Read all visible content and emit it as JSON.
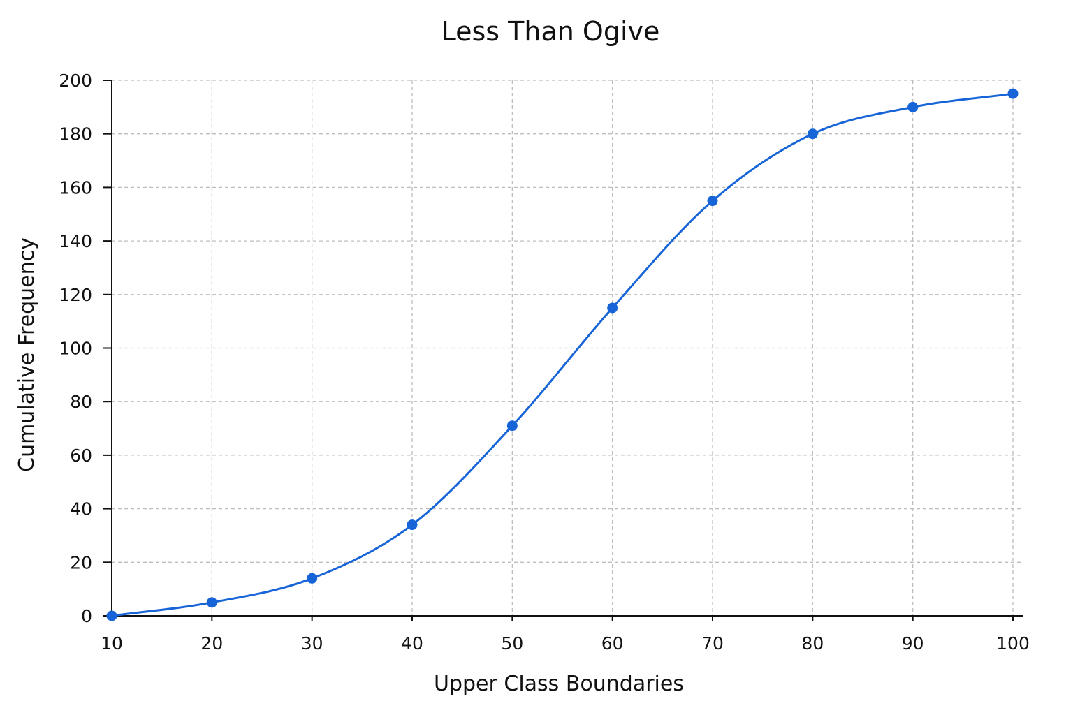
{
  "chart_data": {
    "type": "line",
    "title": "Less Than Ogive",
    "xlabel": "Upper Class Boundaries",
    "ylabel": "Cumulative Frequency",
    "x": [
      10,
      20,
      30,
      40,
      50,
      60,
      70,
      80,
      90,
      100
    ],
    "series": [
      {
        "values": [
          0,
          5,
          14,
          34,
          71,
          115,
          155,
          180,
          190,
          195
        ],
        "color": "#1764d8"
      }
    ],
    "xlim": [
      10,
      100
    ],
    "ylim": [
      0,
      200
    ],
    "xticks": [
      10,
      20,
      30,
      40,
      50,
      60,
      70,
      80,
      90,
      100
    ],
    "yticks": [
      0,
      20,
      40,
      60,
      80,
      100,
      120,
      140,
      160,
      180,
      200
    ],
    "grid": true,
    "smooth": true,
    "markers": true,
    "legend": "none"
  }
}
